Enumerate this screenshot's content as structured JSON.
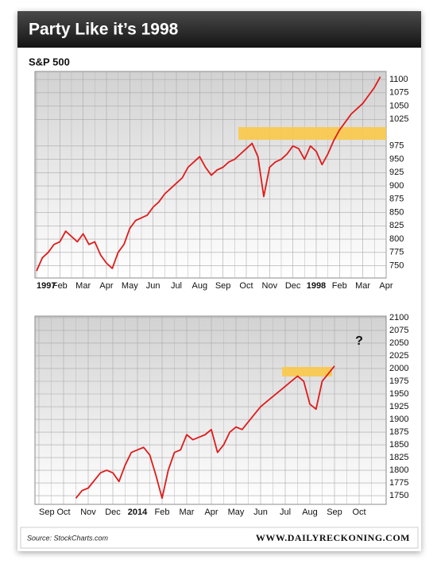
{
  "title": "Party Like it’s 1998",
  "source": "Source: StockCharts.com",
  "credit": "WWW.DAILYRECKONING.COM",
  "chart_data": [
    {
      "type": "line",
      "title": "S&P 500",
      "color": "#e01b1b",
      "grid": true,
      "categories": [
        "1997",
        null,
        null,
        null,
        "Feb",
        null,
        null,
        null,
        "Mar",
        null,
        null,
        null,
        "Apr",
        null,
        null,
        null,
        "May",
        null,
        null,
        null,
        "Jun",
        null,
        null,
        null,
        "Jul",
        null,
        null,
        null,
        "Aug",
        null,
        null,
        null,
        "Sep",
        null,
        null,
        null,
        "Oct",
        null,
        null,
        null,
        "Nov",
        null,
        null,
        null,
        "Dec",
        null,
        null,
        null,
        "1998",
        null,
        null,
        null,
        "Feb",
        null,
        null,
        null,
        "Mar",
        null,
        null,
        null,
        "Apr"
      ],
      "values": [
        740,
        765,
        775,
        790,
        795,
        815,
        805,
        795,
        810,
        790,
        795,
        770,
        755,
        745,
        775,
        790,
        820,
        835,
        840,
        845,
        860,
        870,
        885,
        895,
        905,
        915,
        935,
        945,
        955,
        935,
        920,
        930,
        935,
        945,
        950,
        960,
        970,
        980,
        955,
        880,
        935,
        945,
        950,
        960,
        975,
        970,
        950,
        975,
        965,
        940,
        960,
        985,
        1005,
        1020,
        1035,
        1045,
        1055,
        1070,
        1085,
        1105,
        null
      ],
      "ylim": [
        727,
        1115
      ],
      "yticks": [
        750,
        775,
        800,
        825,
        850,
        875,
        900,
        925,
        950,
        975,
        1025,
        1050,
        1075,
        1100
      ]
    },
    {
      "type": "line",
      "color": "#e01b1b",
      "grid": true,
      "annotations": [
        "?"
      ],
      "categories": [
        "Sep",
        null,
        null,
        null,
        "Oct",
        null,
        null,
        null,
        "Nov",
        null,
        null,
        null,
        "Dec",
        null,
        null,
        null,
        "2014",
        null,
        null,
        null,
        "Feb",
        null,
        null,
        null,
        "Mar",
        null,
        null,
        null,
        "Apr",
        null,
        null,
        null,
        "May",
        null,
        null,
        null,
        "Jun",
        null,
        null,
        null,
        "Jul",
        null,
        null,
        null,
        "Aug",
        null,
        null,
        null,
        "Sep",
        null,
        null,
        null,
        "Oct",
        null,
        null,
        null
      ],
      "values": [
        null,
        null,
        null,
        null,
        null,
        null,
        1745,
        1760,
        1765,
        1780,
        1795,
        1800,
        1795,
        1778,
        1810,
        1835,
        1840,
        1845,
        1830,
        1790,
        1745,
        1800,
        1835,
        1840,
        1870,
        1860,
        1865,
        1870,
        1880,
        1835,
        1850,
        1875,
        1885,
        1880,
        1895,
        1910,
        1925,
        1935,
        1945,
        1955,
        1965,
        1975,
        1985,
        1975,
        1930,
        1920,
        1975,
        1990,
        2005,
        null,
        null,
        null,
        null,
        null,
        null,
        null
      ],
      "ylim": [
        1733,
        2103
      ],
      "yticks": [
        1750,
        1775,
        1800,
        1825,
        1850,
        1875,
        1900,
        1925,
        1950,
        1975,
        2000,
        2025,
        2050,
        2075,
        2100
      ]
    }
  ]
}
